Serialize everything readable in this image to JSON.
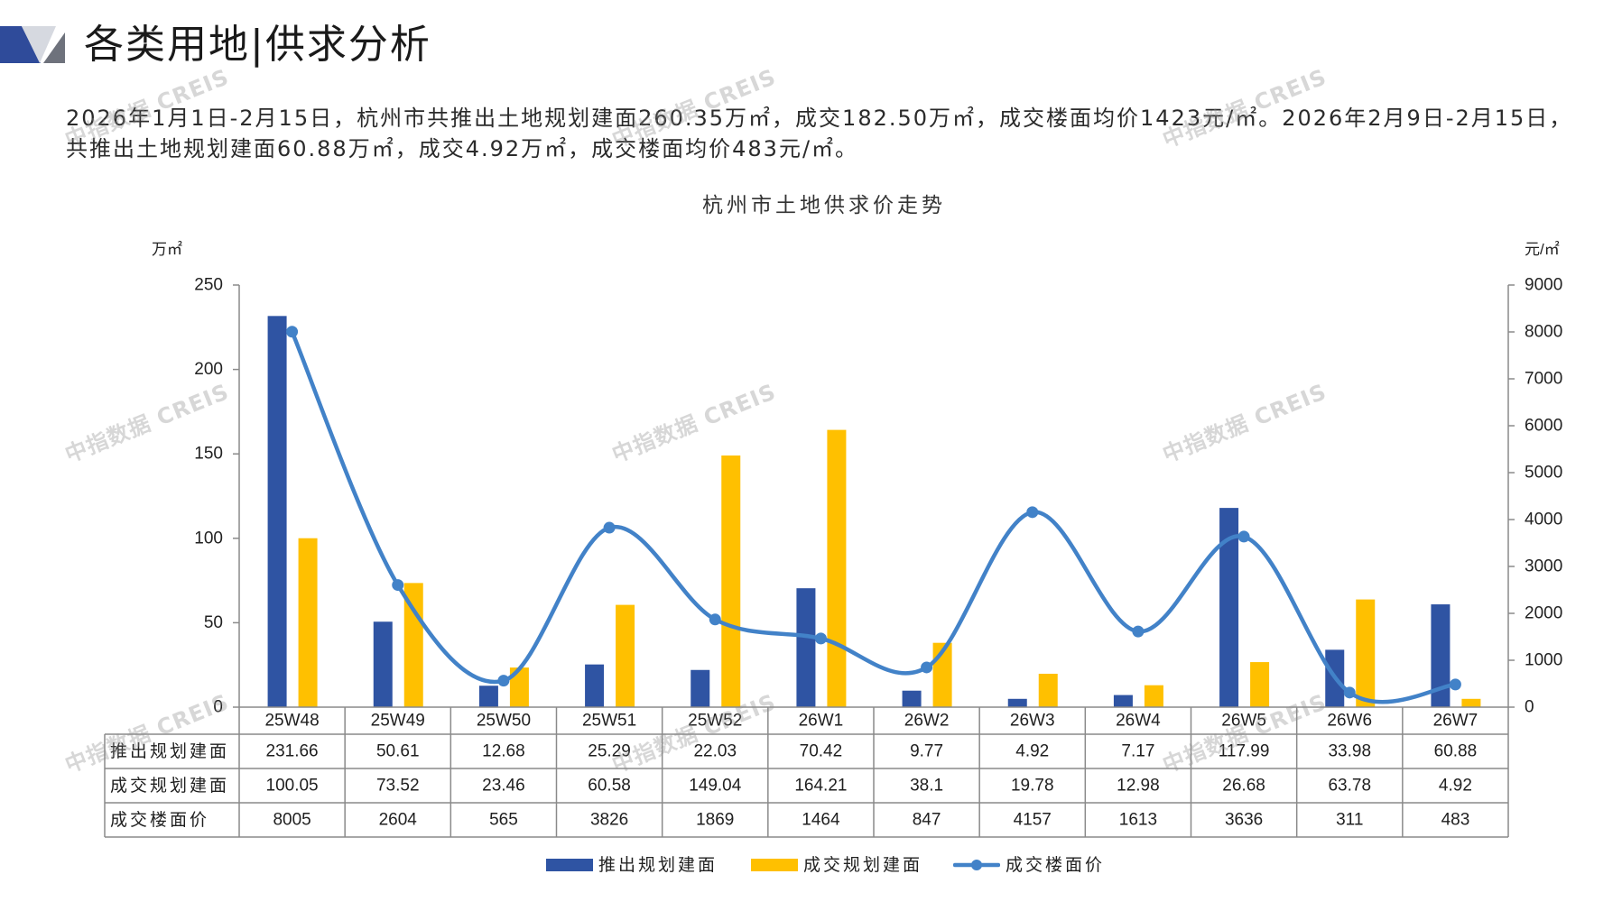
{
  "header": {
    "title": "各类用地|供求分析"
  },
  "summary": {
    "lines": [
      "2026年1月1日-2月15日，杭州市共推出土地规划建面260.35万㎡，成交182.50万㎡，成交楼面均价1423元/㎡。2026年2月9日-2月15日，",
      "共推出土地规划建面60.88万㎡，成交4.92万㎡，成交楼面均价483元/㎡。"
    ]
  },
  "watermark": "中指数据 CREIS",
  "colors": {
    "header_blue": "#2F4B9A",
    "header_light_gray": "#D6D9E0",
    "header_dark_gray": "#6E727C",
    "table_border": "#8A8A8A"
  },
  "chart_data": {
    "type": "bar",
    "title": "杭州市土地供求价走势",
    "categories": [
      "25W48",
      "25W49",
      "25W50",
      "25W51",
      "25W52",
      "26W1",
      "26W2",
      "26W3",
      "26W4",
      "26W5",
      "26W6",
      "26W7"
    ],
    "y_left": {
      "unit": "万㎡",
      "min": 0,
      "max": 250,
      "ticks": [
        0,
        50,
        100,
        150,
        200,
        250
      ]
    },
    "y_right": {
      "unit": "元/㎡",
      "min": 0,
      "max": 9000,
      "ticks": [
        0,
        1000,
        2000,
        3000,
        4000,
        5000,
        6000,
        7000,
        8000,
        9000
      ]
    },
    "series": [
      {
        "name": "推出规划建面",
        "type": "bar",
        "axis": "left",
        "color": "#2F54A3",
        "values": [
          231.66,
          50.61,
          12.68,
          25.29,
          22.03,
          70.42,
          9.77,
          4.92,
          7.17,
          117.99,
          33.98,
          60.88
        ]
      },
      {
        "name": "成交规划建面",
        "type": "bar",
        "axis": "left",
        "color": "#FFC000",
        "values": [
          100.05,
          73.52,
          23.46,
          60.58,
          149.04,
          164.21,
          38.1,
          19.78,
          12.98,
          26.68,
          63.78,
          4.92
        ]
      },
      {
        "name": "成交楼面价",
        "type": "line",
        "axis": "right",
        "smooth": true,
        "color": "#4282C8",
        "values": [
          8005,
          2604,
          565,
          3826,
          1869,
          1464,
          847,
          4157,
          1613,
          3636,
          311,
          483
        ]
      }
    ],
    "data_table": true,
    "legend": "bottom",
    "grid": false
  }
}
